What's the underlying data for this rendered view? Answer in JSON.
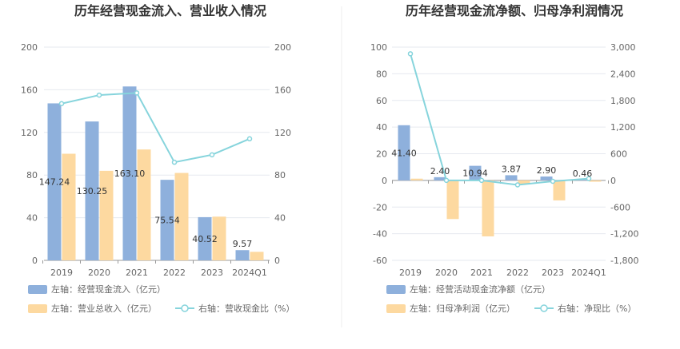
{
  "colors": {
    "bar_primary": "#8eb0dc",
    "bar_secondary": "#fdd9a0",
    "line": "#86d4dc",
    "grid": "#e6e9ef",
    "divider": "#eeeeee"
  },
  "chart_data": [
    {
      "type": "bar",
      "title": "历年经营现金流入、营业收入情况",
      "categories": [
        "2019",
        "2020",
        "2021",
        "2022",
        "2023",
        "2024Q1"
      ],
      "left_axis": {
        "ylim": [
          0,
          200
        ],
        "ticks": [
          "0",
          "40",
          "80",
          "120",
          "160",
          "200"
        ]
      },
      "right_axis": {
        "ylim": [
          0,
          200
        ],
        "ticks": [
          "0",
          "40",
          "80",
          "120",
          "160",
          "200"
        ]
      },
      "series": [
        {
          "name": "左轴：经营现金流入（亿元）",
          "axis": "left",
          "kind": "bar",
          "values": [
            147.24,
            130.25,
            163.1,
            75.54,
            40.52,
            9.57
          ],
          "labels": [
            "147.24",
            "130.25",
            "163.10",
            "75.54",
            "40.52",
            "9.57"
          ]
        },
        {
          "name": "左轴：营业总收入（亿元）",
          "axis": "left",
          "kind": "bar",
          "values": [
            100,
            84,
            104,
            82,
            41,
            8
          ],
          "labels": []
        },
        {
          "name": "右轴：营收现金比（%）",
          "axis": "right",
          "kind": "line",
          "values": [
            147,
            155,
            157,
            92,
            99,
            114
          ]
        }
      ],
      "legend": {
        "placement": "bottom"
      }
    },
    {
      "type": "bar",
      "title": "历年经营现金流净额、归母净利润情况",
      "categories": [
        "2019",
        "2020",
        "2021",
        "2022",
        "2023",
        "2024Q1"
      ],
      "left_axis": {
        "ylim": [
          -60,
          100
        ],
        "ticks": [
          "-60",
          "-40",
          "-20",
          "0",
          "20",
          "40",
          "60",
          "80",
          "100"
        ]
      },
      "right_axis": {
        "ylim": [
          -1800,
          3000
        ],
        "ticks": [
          "-1,800",
          "-1,200",
          "-600",
          "0",
          "600",
          "1,200",
          "1,800",
          "2,400",
          "3,000"
        ]
      },
      "series": [
        {
          "name": "左轴：经营活动现金流净额（亿元）",
          "axis": "left",
          "kind": "bar",
          "values": [
            41.4,
            2.4,
            10.94,
            3.87,
            2.9,
            0.46
          ],
          "labels": [
            "41.40",
            "2.40",
            "10.94",
            "3.87",
            "2.90",
            "0.46"
          ]
        },
        {
          "name": "左轴：归母净利润（亿元）",
          "axis": "left",
          "kind": "bar",
          "values": [
            1.3,
            -29,
            -42,
            -3,
            -15,
            -1
          ],
          "labels": []
        },
        {
          "name": "右轴：净现比（%）",
          "axis": "right",
          "kind": "line",
          "values": [
            2850,
            0,
            0,
            -100,
            -20,
            40
          ]
        }
      ],
      "legend": {
        "placement": "bottom"
      }
    }
  ]
}
